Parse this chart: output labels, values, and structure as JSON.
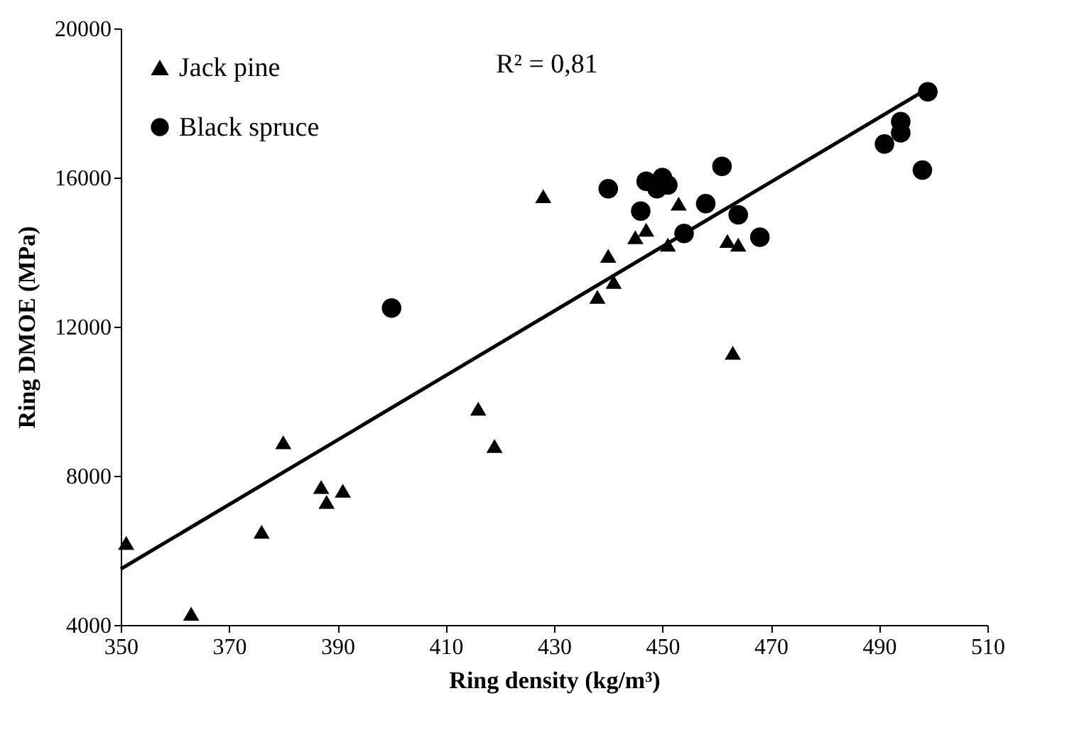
{
  "chart_data": {
    "type": "scatter",
    "xlabel": "Ring density (kg/m³)",
    "ylabel": "Ring DMOE (MPa)",
    "xlim": [
      350,
      510
    ],
    "xticks": [
      350,
      370,
      390,
      410,
      430,
      450,
      470,
      490,
      510
    ],
    "ylim": [
      4000,
      20000
    ],
    "yticks": [
      4000,
      8000,
      12000,
      16000,
      20000
    ],
    "grid": false,
    "legend": "top left",
    "annotations": [
      "R² = 0,81"
    ],
    "series": [
      {
        "name": "Jack pine",
        "color": "#000000",
        "marker": "triangle",
        "x": [
          351,
          363,
          376,
          380,
          387,
          388,
          391,
          416,
          419,
          428,
          438,
          441,
          440,
          445,
          447,
          451,
          453,
          462,
          464,
          463
        ],
        "values": [
          6200,
          4300,
          6500,
          8900,
          7700,
          7300,
          7600,
          9800,
          8800,
          15500,
          12800,
          13200,
          13900,
          14400,
          14600,
          14200,
          15300,
          14300,
          14200,
          11300
        ]
      },
      {
        "name": "Black spruce",
        "color": "#000000",
        "marker": "circle",
        "x": [
          400,
          440,
          446,
          447,
          449,
          450,
          451,
          454,
          458,
          461,
          464,
          468,
          491,
          494,
          494,
          498,
          499
        ],
        "values": [
          12500,
          15700,
          15100,
          15900,
          15700,
          16000,
          15800,
          14500,
          15300,
          16300,
          15000,
          14400,
          16900,
          17200,
          17500,
          16200,
          18300
        ]
      },
      {
        "type": "line",
        "color": "#000000",
        "line_style": "solid",
        "x": [
          350,
          498
        ],
        "values": [
          5500,
          18300
        ]
      }
    ]
  }
}
